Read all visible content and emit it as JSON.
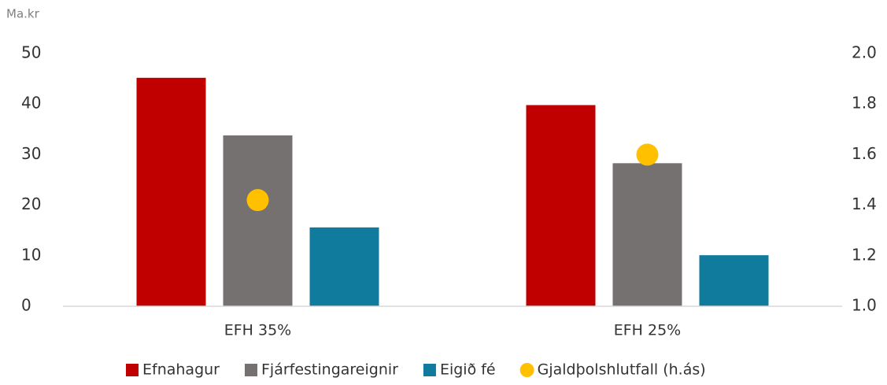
{
  "chart_data": {
    "type": "bar",
    "y_label": "Ma.kr",
    "categories": [
      "EFH 35%",
      "EFH 25%"
    ],
    "series": [
      {
        "name": "Efnahagur",
        "color": "#c00000",
        "values": [
          45.2,
          39.8
        ]
      },
      {
        "name": "Fjárfestingareignir",
        "color": "#767171",
        "values": [
          33.8,
          28.3
        ]
      },
      {
        "name": "Eigið fé",
        "color": "#117b9e",
        "values": [
          15.6,
          10.1
        ]
      },
      {
        "name": "Gjaldþolshlutfall (h.ás)",
        "color": "#ffc000",
        "type": "scatter",
        "axis": "y2",
        "values": [
          1.42,
          1.6
        ]
      }
    ],
    "ylim": [
      0,
      50
    ],
    "yticks": [
      0,
      10,
      20,
      30,
      40,
      50
    ],
    "y2lim": [
      1,
      2
    ],
    "y2ticks": [
      {
        "value": 1,
        "label": "1.0"
      },
      1.2,
      1.4,
      1.6,
      1.8,
      {
        "value": 2,
        "label": "2.0"
      }
    ],
    "legend": "bottom"
  }
}
